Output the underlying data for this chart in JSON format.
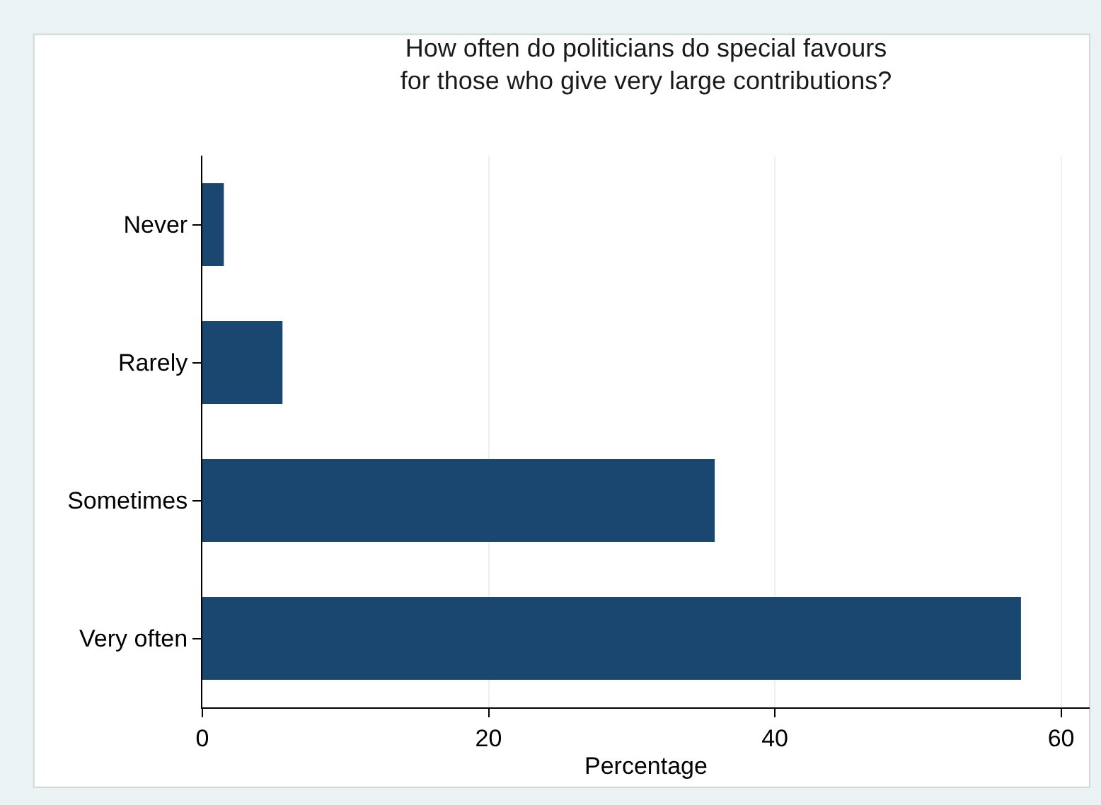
{
  "chart_data": {
    "type": "bar",
    "orientation": "horizontal",
    "title": "How often do politicians do special favours\nfor those who give very large contributions?",
    "xlabel": "Percentage",
    "categories": [
      "Never",
      "Rarely",
      "Sometimes",
      "Very often"
    ],
    "values": [
      1.5,
      5.6,
      35.8,
      57.2
    ],
    "color": "#1a476f",
    "xlim": [
      0,
      62
    ],
    "xticks": [
      0,
      20,
      40,
      60
    ],
    "grid": "x"
  }
}
